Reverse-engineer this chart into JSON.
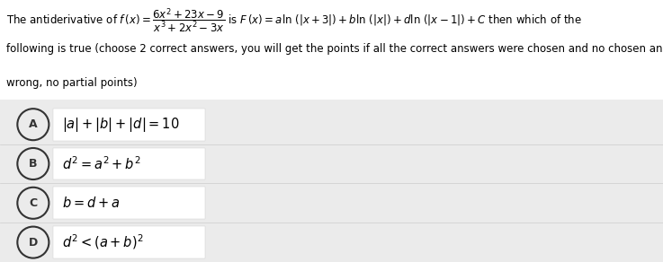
{
  "bg_color": "#ebebeb",
  "header_bg": "#ffffff",
  "header_text_1": "The antiderivative of $f\\,(x) = \\dfrac{6x^2 + 23x - 9}{x^3 + 2x^2 - 3x}$ is $F\\,(x) = a\\ln\\,(|x+3|) + b\\ln\\,(|x|) + d\\ln\\,(|x-1|) + C$ then which of the",
  "header_text_2": "following is true (choose 2 correct answers, you will get the points if all the correct answers were chosen and no chosen answer is",
  "header_text_3": "wrong, no partial points)",
  "options": [
    {
      "label": "A",
      "text": "$|a| + |b| + |d| = 10$"
    },
    {
      "label": "B",
      "text": "$d^2 = a^2 + b^2$"
    },
    {
      "label": "C",
      "text": "$b = d + a$"
    },
    {
      "label": "D",
      "text": "$d^2 < (a+b)^2$"
    }
  ],
  "option_text_bg": "#ffffff",
  "option_border": "#cccccc",
  "circle_color": "#333333",
  "text_color": "#000000",
  "font_size_header": 8.5,
  "font_size_option": 10.5,
  "font_size_circle": 9
}
